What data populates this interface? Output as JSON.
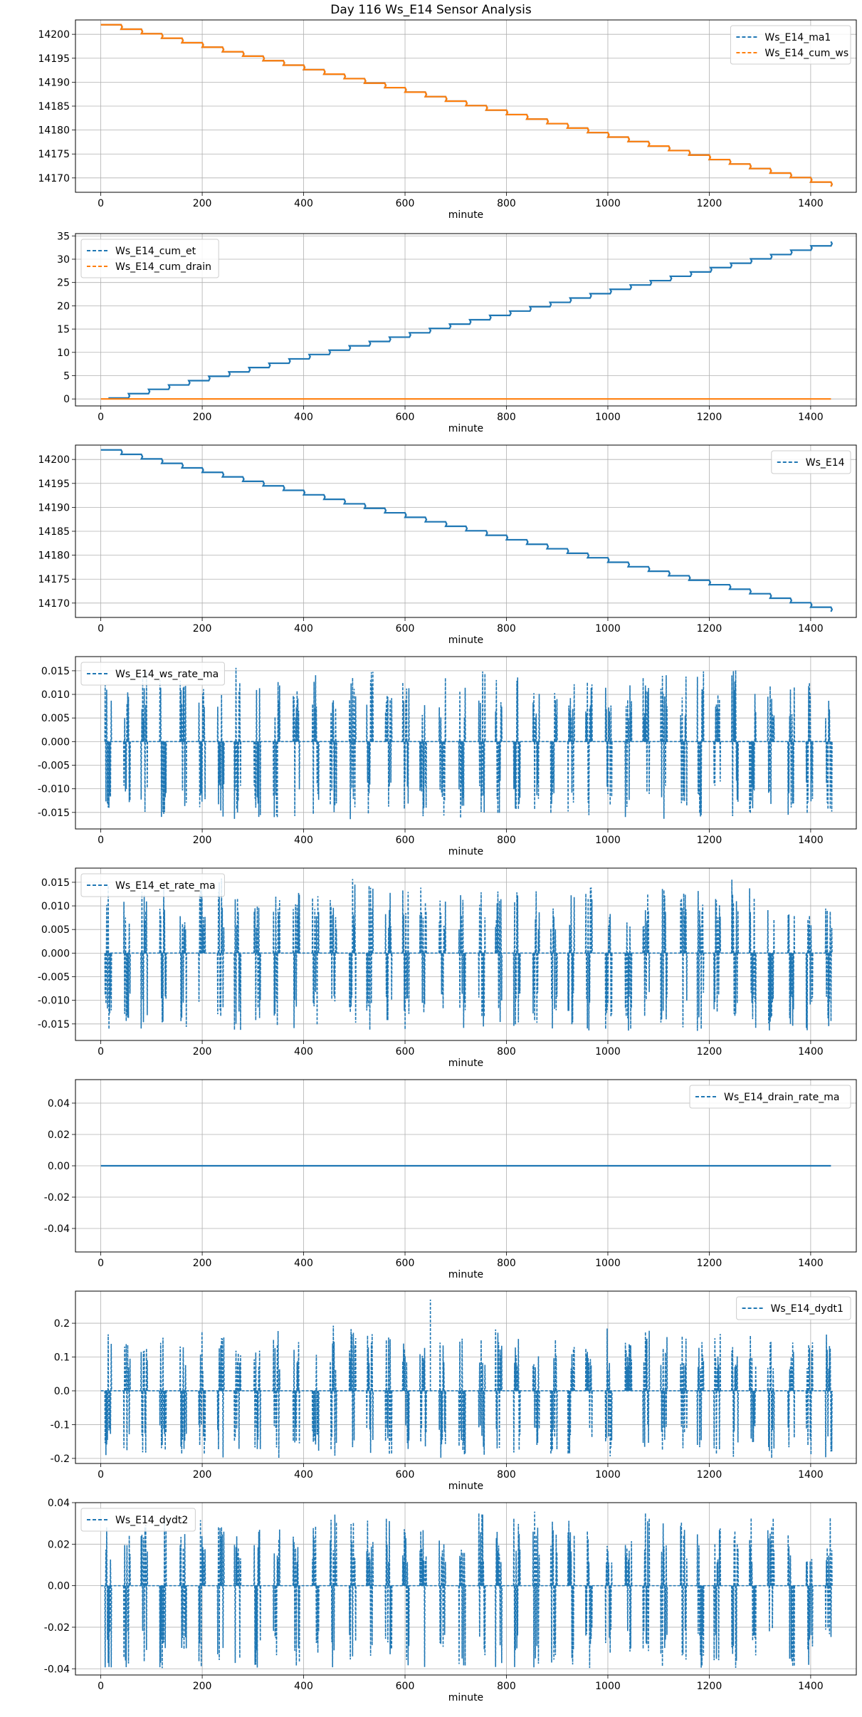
{
  "title": "Day 116 Ws_E14 Sensor Analysis",
  "colors": {
    "blue": "#1f77b4",
    "orange": "#ff7f0e",
    "grid": "#b0b0b0"
  },
  "chart_data": [
    {
      "type": "line",
      "xlabel": "minute",
      "xlim": [
        -50,
        1490
      ],
      "ylim": [
        14167,
        14203
      ],
      "xticks": [
        "0",
        "200",
        "400",
        "600",
        "800",
        "1000",
        "1200",
        "1400"
      ],
      "yticks": [
        "14170",
        "14175",
        "14180",
        "14185",
        "14190",
        "14195",
        "14200"
      ],
      "legend_loc": "upper right",
      "series": [
        {
          "name": "Ws_E14_ma1",
          "color": "#1f77b4",
          "kind": "step",
          "x": [
            0,
            1440
          ],
          "y": [
            14202,
            14168.2
          ]
        },
        {
          "name": "Ws_E14_cum_ws",
          "color": "#ff7f0e",
          "kind": "step",
          "x": [
            0,
            1440
          ],
          "y": [
            14202,
            14168.2
          ]
        }
      ]
    },
    {
      "type": "line",
      "xlabel": "minute",
      "xlim": [
        -50,
        1490
      ],
      "ylim": [
        -1.5,
        35.5
      ],
      "xticks": [
        "0",
        "200",
        "400",
        "600",
        "800",
        "1000",
        "1200",
        "1400"
      ],
      "yticks": [
        "0",
        "5",
        "10",
        "15",
        "20",
        "25",
        "30",
        "35"
      ],
      "legend_loc": "upper left",
      "series": [
        {
          "name": "Ws_E14_cum_et",
          "color": "#1f77b4",
          "kind": "step",
          "x": [
            15,
            1440
          ],
          "y": [
            0.2,
            33.8
          ]
        },
        {
          "name": "Ws_E14_cum_drain",
          "color": "#ff7f0e",
          "kind": "flat",
          "x": [
            0,
            1440
          ],
          "y": [
            0,
            0
          ]
        }
      ]
    },
    {
      "type": "line",
      "xlabel": "minute",
      "xlim": [
        -50,
        1490
      ],
      "ylim": [
        14167,
        14203
      ],
      "xticks": [
        "0",
        "200",
        "400",
        "600",
        "800",
        "1000",
        "1200",
        "1400"
      ],
      "yticks": [
        "14170",
        "14175",
        "14180",
        "14185",
        "14190",
        "14195",
        "14200"
      ],
      "legend_loc": "upper right",
      "series": [
        {
          "name": "Ws_E14",
          "color": "#1f77b4",
          "kind": "step",
          "x": [
            0,
            1440
          ],
          "y": [
            14202,
            14168.2
          ]
        }
      ]
    },
    {
      "type": "line",
      "xlabel": "minute",
      "xlim": [
        -50,
        1490
      ],
      "ylim": [
        -0.0185,
        0.018
      ],
      "xticks": [
        "0",
        "200",
        "400",
        "600",
        "800",
        "1000",
        "1200",
        "1400"
      ],
      "yticks": [
        "-0.015",
        "-0.010",
        "-0.005",
        "0.000",
        "0.005",
        "0.010",
        "0.015"
      ],
      "legend_loc": "upper left",
      "series": [
        {
          "name": "Ws_E14_ws_rate_ma",
          "color": "#1f77b4",
          "kind": "burst",
          "x": [
            10,
            1440
          ],
          "ymin": -0.0165,
          "ymax": 0.0165
        }
      ]
    },
    {
      "type": "line",
      "xlabel": "minute",
      "xlim": [
        -50,
        1490
      ],
      "ylim": [
        -0.0185,
        0.018
      ],
      "xticks": [
        "0",
        "200",
        "400",
        "600",
        "800",
        "1000",
        "1200",
        "1400"
      ],
      "yticks": [
        "-0.015",
        "-0.010",
        "-0.005",
        "0.000",
        "0.005",
        "0.010",
        "0.015"
      ],
      "legend_loc": "upper left",
      "series": [
        {
          "name": "Ws_E14_et_rate_ma",
          "color": "#1f77b4",
          "kind": "burst",
          "x": [
            10,
            1440
          ],
          "ymin": -0.0165,
          "ymax": 0.0165
        }
      ]
    },
    {
      "type": "line",
      "xlabel": "minute",
      "xlim": [
        -50,
        1490
      ],
      "ylim": [
        -0.055,
        0.055
      ],
      "xticks": [
        "0",
        "200",
        "400",
        "600",
        "800",
        "1000",
        "1200",
        "1400"
      ],
      "yticks": [
        "-0.04",
        "-0.02",
        "0.00",
        "0.02",
        "0.04"
      ],
      "legend_loc": "upper right",
      "series": [
        {
          "name": "Ws_E14_drain_rate_ma",
          "color": "#1f77b4",
          "kind": "flat",
          "x": [
            0,
            1440
          ],
          "y": [
            0,
            0
          ]
        }
      ]
    },
    {
      "type": "line",
      "xlabel": "minute",
      "xlim": [
        -50,
        1490
      ],
      "ylim": [
        -0.215,
        0.295
      ],
      "xticks": [
        "0",
        "200",
        "400",
        "600",
        "800",
        "1000",
        "1200",
        "1400"
      ],
      "yticks": [
        "-0.2",
        "-0.1",
        "0.0",
        "0.1",
        "0.2"
      ],
      "legend_loc": "upper right",
      "series": [
        {
          "name": "Ws_E14_dydt1",
          "color": "#1f77b4",
          "kind": "burst",
          "x": [
            0,
            1440
          ],
          "ymin": -0.2,
          "ymax": 0.2,
          "spike": [
            650,
            0.27
          ]
        }
      ]
    },
    {
      "type": "line",
      "xlabel": "minute",
      "xlim": [
        -50,
        1490
      ],
      "ylim": [
        -0.043,
        0.04
      ],
      "xticks": [
        "0",
        "200",
        "400",
        "600",
        "800",
        "1000",
        "1200",
        "1400"
      ],
      "yticks": [
        "-0.04",
        "-0.02",
        "0.00",
        "0.02",
        "0.04"
      ],
      "legend_loc": "upper left",
      "series": [
        {
          "name": "Ws_E14_dydt2",
          "color": "#1f77b4",
          "kind": "burst",
          "x": [
            0,
            1440
          ],
          "ymin": -0.04,
          "ymax": 0.037
        }
      ]
    }
  ]
}
